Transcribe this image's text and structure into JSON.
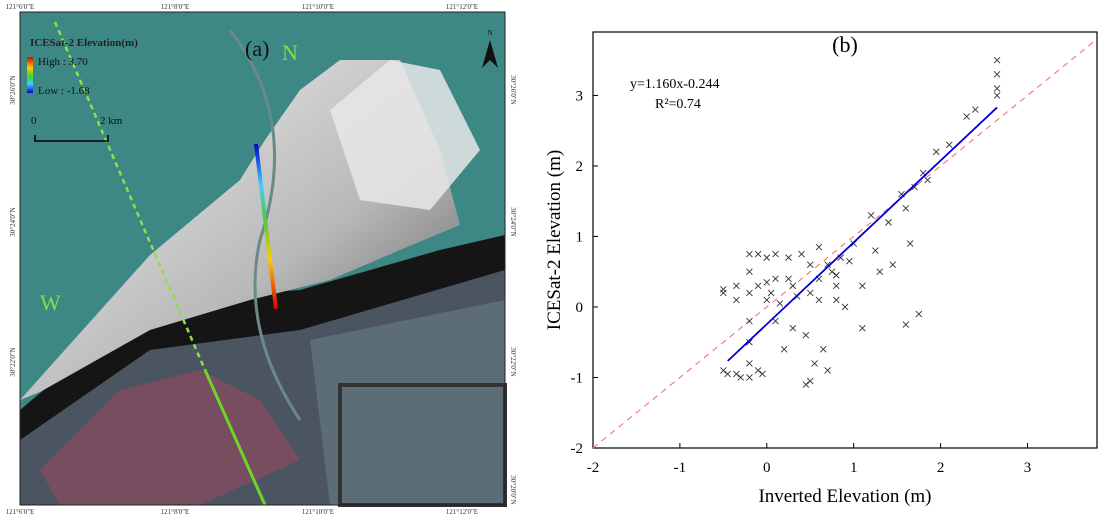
{
  "map": {
    "panel_label": "(a)",
    "legend_title": "ICESat-2 Elevation(m)",
    "legend_high": "High : 3.70",
    "legend_low": "Low : -1.68",
    "scale_start": "0",
    "scale_end": "2 km",
    "north_arrow": "N",
    "label_n": "N",
    "label_w": "W",
    "top_coords": [
      "121°6'0\"E",
      "121°8'0\"E",
      "121°10'0\"E",
      "121°12'0\"E"
    ],
    "bottom_coords": [
      "121°6'0\"E",
      "121°8'0\"E",
      "121°10'0\"E",
      "121°12'0\"E"
    ],
    "left_coords": [
      "30°26'0\"N",
      "30°24'0\"N",
      "30°22'0\"N"
    ],
    "right_coords": [
      "30°26'0\"N",
      "30°24'0\"N",
      "30°22'0\"N",
      "30°20'0\"N"
    ]
  },
  "chart_data": {
    "type": "scatter",
    "title": "(b)",
    "xlabel": "Inverted Elevation (m)",
    "ylabel": "ICESat-2 Elevation (m)",
    "annotations": [
      "y=1.160x-0.244",
      "R²=0.74"
    ],
    "xlim": [
      -2,
      3.8
    ],
    "ylim": [
      -2,
      3.9
    ],
    "xticks": [
      -2,
      -1,
      0,
      1,
      2,
      3
    ],
    "yticks": [
      -2,
      -1,
      0,
      1,
      2,
      3
    ],
    "marker_color": "#333333",
    "fit_color": "#0000dd",
    "reference_color": "#f08080",
    "fit_line": {
      "x": [
        -0.45,
        2.65
      ],
      "y": [
        -0.766,
        2.83
      ]
    },
    "reference_line": {
      "x": [
        -2,
        3.8
      ],
      "y": [
        -2,
        3.8
      ]
    },
    "x": [
      -0.5,
      -0.5,
      -0.5,
      -0.45,
      -0.35,
      -0.35,
      -0.35,
      -0.3,
      -0.2,
      -0.2,
      -0.2,
      -0.2,
      -0.2,
      -0.2,
      -0.2,
      -0.1,
      -0.1,
      -0.1,
      -0.05,
      0,
      0,
      0,
      0.1,
      0.1,
      0.1,
      0.15,
      0.25,
      0.25,
      0.3,
      0.35,
      0.4,
      0.45,
      0.5,
      0.5,
      0.55,
      0.6,
      0.6,
      0.65,
      0.7,
      0.75,
      0.8,
      0.8,
      0.85,
      0.9,
      0.95,
      1.0,
      1.1,
      1.1,
      1.2,
      1.25,
      1.3,
      1.4,
      1.45,
      1.55,
      1.6,
      1.6,
      1.65,
      1.7,
      1.75,
      1.8,
      1.85,
      1.95,
      2.1,
      2.3,
      2.4,
      2.65,
      2.65,
      2.65,
      2.65,
      0.45,
      0.5,
      0.2,
      0.3,
      0.05,
      0.6,
      0.7,
      0.8
    ],
    "values": [
      0.25,
      0.2,
      -0.9,
      -0.95,
      0.3,
      0.1,
      -0.95,
      -1.0,
      0.75,
      0.5,
      0.2,
      -0.2,
      -0.5,
      -0.8,
      -1.0,
      0.75,
      0.3,
      -0.9,
      -0.95,
      0.7,
      0.35,
      0.1,
      0.75,
      0.4,
      -0.2,
      0.05,
      0.7,
      0.4,
      -0.3,
      0.15,
      0.75,
      -0.4,
      0.6,
      0.2,
      -0.8,
      0.85,
      0.4,
      -0.6,
      -0.9,
      0.5,
      0.3,
      0.1,
      0.7,
      0.0,
      0.65,
      0.9,
      0.3,
      -0.3,
      1.3,
      0.8,
      0.5,
      1.2,
      0.6,
      1.6,
      1.4,
      -0.25,
      0.9,
      1.7,
      -0.1,
      1.9,
      1.8,
      2.2,
      2.3,
      2.7,
      2.8,
      3.5,
      3.3,
      3.1,
      3.0,
      -1.1,
      -1.05,
      -0.6,
      0.3,
      0.2,
      0.1,
      0.6,
      0.45
    ]
  }
}
